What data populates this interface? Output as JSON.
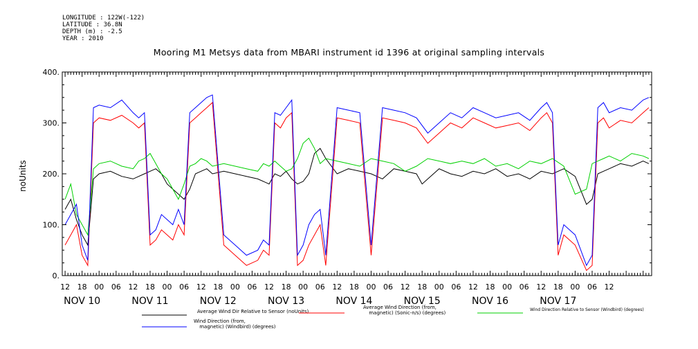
{
  "metadata": {
    "longitude": "LONGITUDE : 122W(-122)",
    "latitude": "LATITUDE : 36.8N",
    "depth": "DEPTH (m) : -2.5",
    "year": "YEAR : 2010"
  },
  "chart_data": {
    "type": "line",
    "title": "Mooring M1 Metsys data from MBARI instrument id 1396 at original sampling intervals",
    "xlabel": "",
    "ylabel": "noUnits",
    "ylim": [
      0,
      400
    ],
    "yticks": [
      0,
      100,
      200,
      300,
      400
    ],
    "ytick_labels": [
      "0.",
      "100.",
      "200.",
      "300.",
      "400."
    ],
    "xlim_hours": [
      -1,
      207
    ],
    "x_hour_ticks": [
      "12",
      "18",
      "00",
      "06",
      "12",
      "18",
      "00",
      "06",
      "12",
      "18",
      "00",
      "06",
      "12",
      "18",
      "00",
      "06",
      "12",
      "18",
      "00",
      "06",
      "12",
      "18",
      "00",
      "06",
      "12",
      "18",
      "00",
      "06",
      "12",
      "18",
      "00",
      "06",
      "12"
    ],
    "x_day_labels": [
      "NOV 10",
      "NOV 11",
      "NOV 12",
      "NOV 13",
      "NOV 14",
      "NOV 15",
      "NOV 16",
      "NOV 17"
    ],
    "x_unit": "hours since 2010-11-10 12:00",
    "grid": false,
    "legend_position": "bottom",
    "series": [
      {
        "name": "Average Wind Dir Relative to Sensor (noUnits)",
        "color": "#000000",
        "x": [
          0,
          2,
          4,
          6,
          8,
          10,
          12,
          16,
          20,
          24,
          28,
          30,
          32,
          34,
          36,
          38,
          40,
          42,
          44,
          46,
          48,
          50,
          52,
          56,
          60,
          64,
          68,
          72,
          74,
          76,
          78,
          80,
          82,
          84,
          86,
          88,
          90,
          92,
          96,
          100,
          104,
          108,
          112,
          116,
          120,
          124,
          126,
          128,
          132,
          136,
          140,
          144,
          148,
          152,
          156,
          160,
          164,
          168,
          172,
          176,
          180,
          184,
          186,
          188,
          190,
          192,
          196,
          200,
          204,
          206
        ],
        "values": [
          130,
          150,
          110,
          80,
          60,
          190,
          200,
          205,
          195,
          190,
          200,
          205,
          210,
          200,
          180,
          170,
          160,
          150,
          170,
          200,
          205,
          210,
          200,
          205,
          200,
          195,
          190,
          180,
          200,
          195,
          205,
          190,
          180,
          185,
          200,
          240,
          250,
          230,
          200,
          210,
          205,
          200,
          190,
          210,
          205,
          200,
          180,
          190,
          210,
          200,
          195,
          205,
          200,
          210,
          195,
          200,
          190,
          205,
          200,
          210,
          195,
          140,
          150,
          200,
          205,
          210,
          220,
          215,
          225,
          220
        ]
      },
      {
        "name": "Average Wind Direction (from, magnetic) (Sonic-n/s) (degrees)",
        "color": "#ff0000",
        "x": [
          0,
          2,
          4,
          6,
          8,
          10,
          12,
          16,
          20,
          24,
          26,
          28,
          30,
          32,
          34,
          36,
          38,
          40,
          42,
          44,
          46,
          48,
          50,
          52,
          56,
          60,
          64,
          68,
          70,
          72,
          74,
          76,
          78,
          80,
          82,
          84,
          86,
          88,
          90,
          92,
          96,
          100,
          104,
          108,
          112,
          116,
          120,
          124,
          128,
          132,
          136,
          140,
          144,
          148,
          152,
          156,
          160,
          164,
          168,
          170,
          172,
          174,
          176,
          180,
          184,
          186,
          188,
          190,
          192,
          196,
          200,
          204,
          206
        ],
        "values": [
          60,
          80,
          100,
          40,
          20,
          300,
          310,
          305,
          315,
          300,
          290,
          300,
          60,
          70,
          90,
          80,
          70,
          100,
          80,
          300,
          310,
          320,
          330,
          340,
          60,
          40,
          20,
          30,
          50,
          40,
          300,
          290,
          310,
          320,
          20,
          30,
          60,
          80,
          100,
          20,
          310,
          305,
          300,
          40,
          310,
          305,
          300,
          290,
          260,
          280,
          300,
          290,
          310,
          300,
          290,
          295,
          300,
          285,
          310,
          320,
          300,
          40,
          80,
          60,
          10,
          20,
          300,
          310,
          290,
          305,
          300,
          320,
          330
        ]
      },
      {
        "name": "Wind Direction Relative to Sensor (Windbird) (degrees)",
        "color": "#00d000",
        "x": [
          0,
          2,
          4,
          6,
          8,
          10,
          12,
          16,
          20,
          24,
          26,
          28,
          30,
          32,
          34,
          36,
          38,
          40,
          42,
          44,
          46,
          48,
          50,
          52,
          56,
          60,
          64,
          68,
          70,
          72,
          74,
          76,
          78,
          80,
          82,
          84,
          86,
          88,
          90,
          92,
          96,
          100,
          104,
          108,
          112,
          116,
          120,
          124,
          128,
          132,
          136,
          140,
          144,
          148,
          152,
          156,
          160,
          164,
          168,
          172,
          176,
          180,
          184,
          186,
          188,
          190,
          192,
          196,
          200,
          204,
          206
        ],
        "values": [
          150,
          180,
          120,
          100,
          80,
          210,
          220,
          225,
          215,
          210,
          225,
          230,
          240,
          220,
          200,
          190,
          170,
          150,
          180,
          215,
          220,
          230,
          225,
          215,
          220,
          215,
          210,
          205,
          220,
          215,
          225,
          215,
          205,
          210,
          230,
          260,
          270,
          250,
          220,
          230,
          225,
          220,
          215,
          230,
          225,
          220,
          205,
          215,
          230,
          225,
          220,
          225,
          220,
          230,
          215,
          220,
          210,
          225,
          220,
          230,
          215,
          160,
          170,
          220,
          225,
          230,
          235,
          225,
          240,
          235,
          230
        ]
      },
      {
        "name": "Wind Direction (from, magnetic) (Windbird) (degrees)",
        "color": "#0000ff",
        "x": [
          0,
          2,
          4,
          6,
          8,
          10,
          12,
          16,
          20,
          24,
          26,
          28,
          30,
          32,
          34,
          36,
          38,
          40,
          42,
          44,
          46,
          48,
          50,
          52,
          56,
          60,
          64,
          68,
          70,
          72,
          74,
          76,
          78,
          80,
          82,
          84,
          86,
          88,
          90,
          92,
          96,
          100,
          104,
          108,
          112,
          116,
          120,
          124,
          128,
          132,
          136,
          140,
          144,
          148,
          152,
          156,
          160,
          164,
          168,
          170,
          172,
          174,
          176,
          180,
          184,
          186,
          188,
          190,
          192,
          196,
          200,
          204,
          206
        ],
        "values": [
          100,
          120,
          140,
          60,
          30,
          330,
          335,
          330,
          345,
          320,
          310,
          320,
          80,
          90,
          120,
          110,
          100,
          130,
          100,
          320,
          330,
          340,
          350,
          355,
          80,
          60,
          40,
          50,
          70,
          60,
          320,
          315,
          330,
          345,
          40,
          60,
          100,
          120,
          130,
          40,
          330,
          325,
          320,
          60,
          330,
          325,
          320,
          310,
          280,
          300,
          320,
          310,
          330,
          320,
          310,
          315,
          320,
          305,
          330,
          340,
          320,
          60,
          100,
          80,
          20,
          40,
          330,
          340,
          320,
          330,
          325,
          345,
          350
        ]
      }
    ],
    "legend": [
      {
        "label": "Average Wind Dir Relative to Sensor (noUnits)",
        "color": "#000000"
      },
      {
        "label": "Average Wind Direction (from,\n magnetic) (Sonic-n/s) (degrees)",
        "color": "#ff0000"
      },
      {
        "label": "Wind Direction Relative to Sensor (Windbird) (degrees)",
        "color": "#00d000"
      },
      {
        "label": "Wind Direction (from,\n magnetic) (Windbird) (degrees)",
        "color": "#0000ff"
      }
    ]
  }
}
